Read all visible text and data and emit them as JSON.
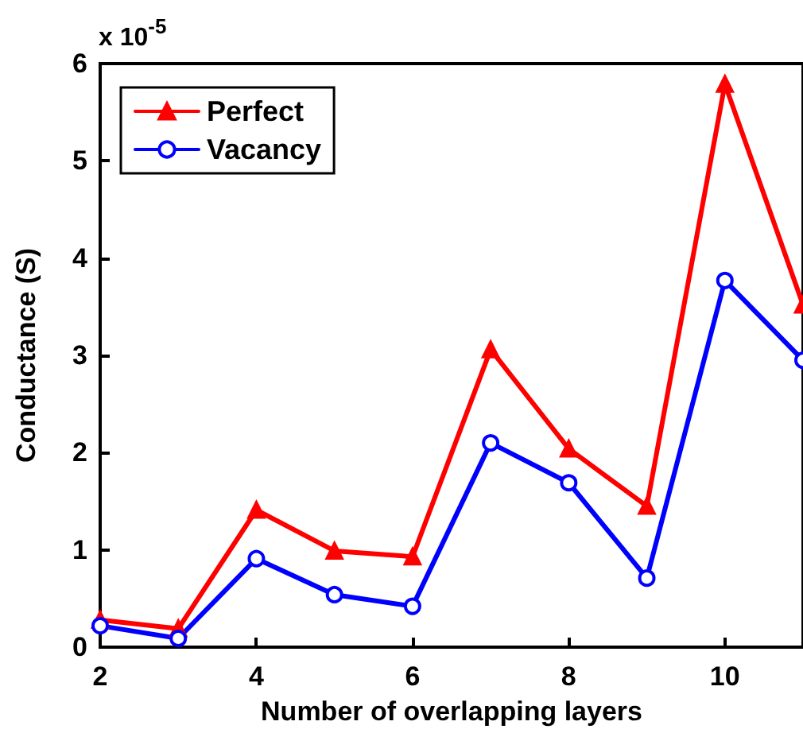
{
  "chart_data": {
    "type": "line",
    "xlabel": "Number of overlapping layers",
    "ylabel": "Conductance (S)",
    "annotations": [
      "x 10$^{-5}$"
    ],
    "x": [
      2,
      3,
      4,
      5,
      6,
      7,
      8,
      9,
      10,
      11
    ],
    "series": [
      {
        "name": "Perfect",
        "color": "#ff0000",
        "marker": "triangle",
        "values": [
          0.28,
          0.19,
          1.41,
          0.99,
          0.93,
          3.06,
          2.04,
          1.45,
          5.79,
          3.52
        ]
      },
      {
        "name": "Vacancy",
        "color": "#0000ff",
        "marker": "circle",
        "values": [
          0.22,
          0.09,
          0.91,
          0.54,
          0.42,
          2.1,
          1.69,
          0.71,
          3.77,
          2.95
        ]
      }
    ],
    "xlim": [
      2,
      11
    ],
    "xticks": [
      2,
      4,
      6,
      8,
      10
    ],
    "ylim": [
      0,
      6
    ],
    "yticks": [
      0,
      1,
      2,
      3,
      4,
      5,
      6
    ],
    "grid": false,
    "legend": "top left",
    "line_style": "solid"
  }
}
